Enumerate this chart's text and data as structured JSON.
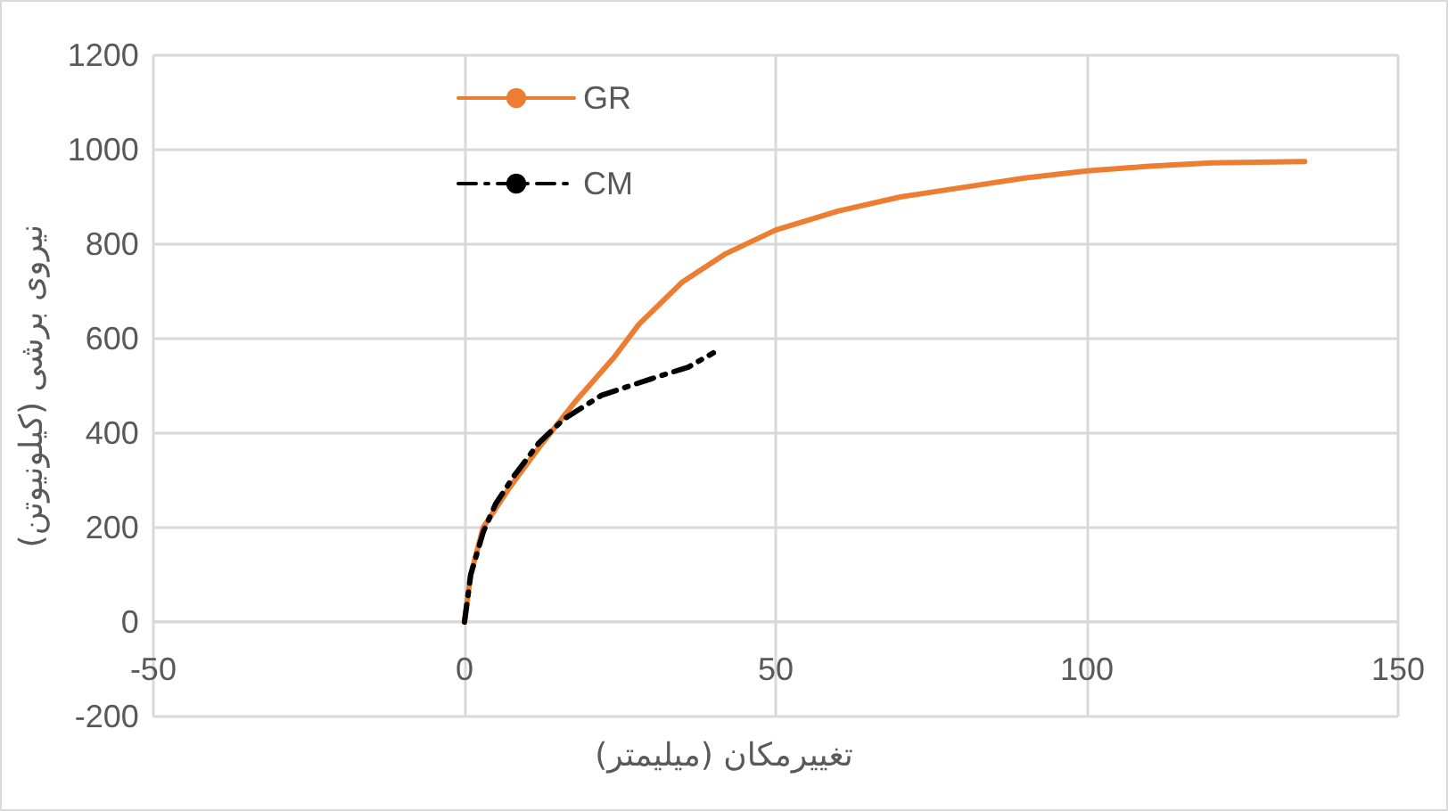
{
  "chart_data": {
    "type": "line",
    "xlabel": "تغییرمکان (میلیمتر)",
    "ylabel": "نیروی برشی (کیلونیوتن)",
    "xlim": [
      -50,
      150
    ],
    "xticks": [
      -50,
      0,
      50,
      100,
      150
    ],
    "ylim": [
      -200,
      1200
    ],
    "yticks": [
      -200,
      0,
      200,
      400,
      600,
      800,
      1000,
      1200
    ],
    "grid": true,
    "legend": "top left",
    "marker": "none",
    "series": [
      {
        "name": "GR",
        "color": "#ed7d31",
        "line_style": "solid",
        "x": [
          0,
          1,
          3,
          7,
          12,
          18,
          24,
          28,
          35,
          42,
          50,
          60,
          70,
          80,
          90,
          100,
          110,
          120,
          135
        ],
        "values": [
          0,
          100,
          200,
          280,
          370,
          470,
          560,
          630,
          720,
          780,
          830,
          870,
          900,
          920,
          940,
          955,
          965,
          972,
          975
        ]
      },
      {
        "name": "CM",
        "color": "#000000",
        "line_style": "dashed",
        "x": [
          0,
          1,
          3,
          5,
          8,
          12,
          16,
          22,
          30,
          36,
          40
        ],
        "values": [
          0,
          100,
          190,
          250,
          310,
          380,
          430,
          480,
          515,
          540,
          570
        ]
      }
    ]
  }
}
